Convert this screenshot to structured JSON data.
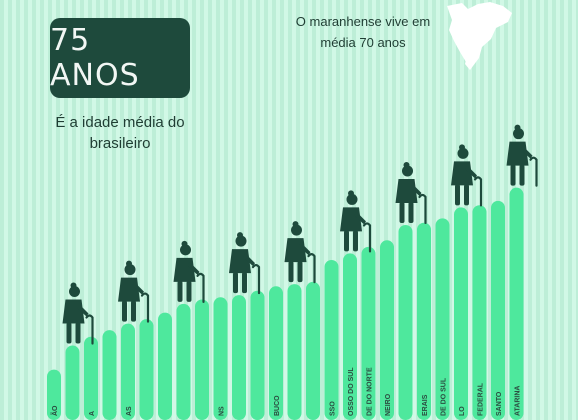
{
  "headline": {
    "value": "75 ANOS",
    "subtitle": "É a idade média do brasileiro"
  },
  "note": {
    "text": "O maranhense vive em média 70 anos"
  },
  "map": {
    "icon": "maranhao-state-map-icon"
  },
  "colors": {
    "background": "#c8f5df",
    "bar": "#4ee89d",
    "bar_dark": "#39c988",
    "badge": "#1e4a3c",
    "figure": "#1e4a3c",
    "text": "#1f3d33"
  },
  "chart_data": {
    "type": "bar",
    "categories": [
      "ÃO",
      "",
      "A",
      "",
      "AS",
      "",
      "",
      "",
      "",
      "NS",
      "",
      "",
      "BUCO",
      "",
      "",
      "SSO",
      "OSSO DO SUL",
      "DE DO NORTE",
      "NEIRO",
      "",
      "ERAIS",
      "DE DO SUL",
      "LO",
      "FEDERAL",
      "SANTO",
      "ATARINA"
    ],
    "values": [
      70.3,
      71.4,
      71.8,
      72.1,
      72.4,
      72.6,
      72.9,
      73.3,
      73.5,
      73.6,
      73.7,
      73.9,
      74.1,
      74.2,
      74.3,
      75.3,
      75.6,
      75.9,
      76.2,
      76.9,
      77.0,
      77.2,
      77.7,
      77.8,
      78.0,
      78.6
    ],
    "ylim": [
      68,
      80
    ],
    "grid": false
  }
}
